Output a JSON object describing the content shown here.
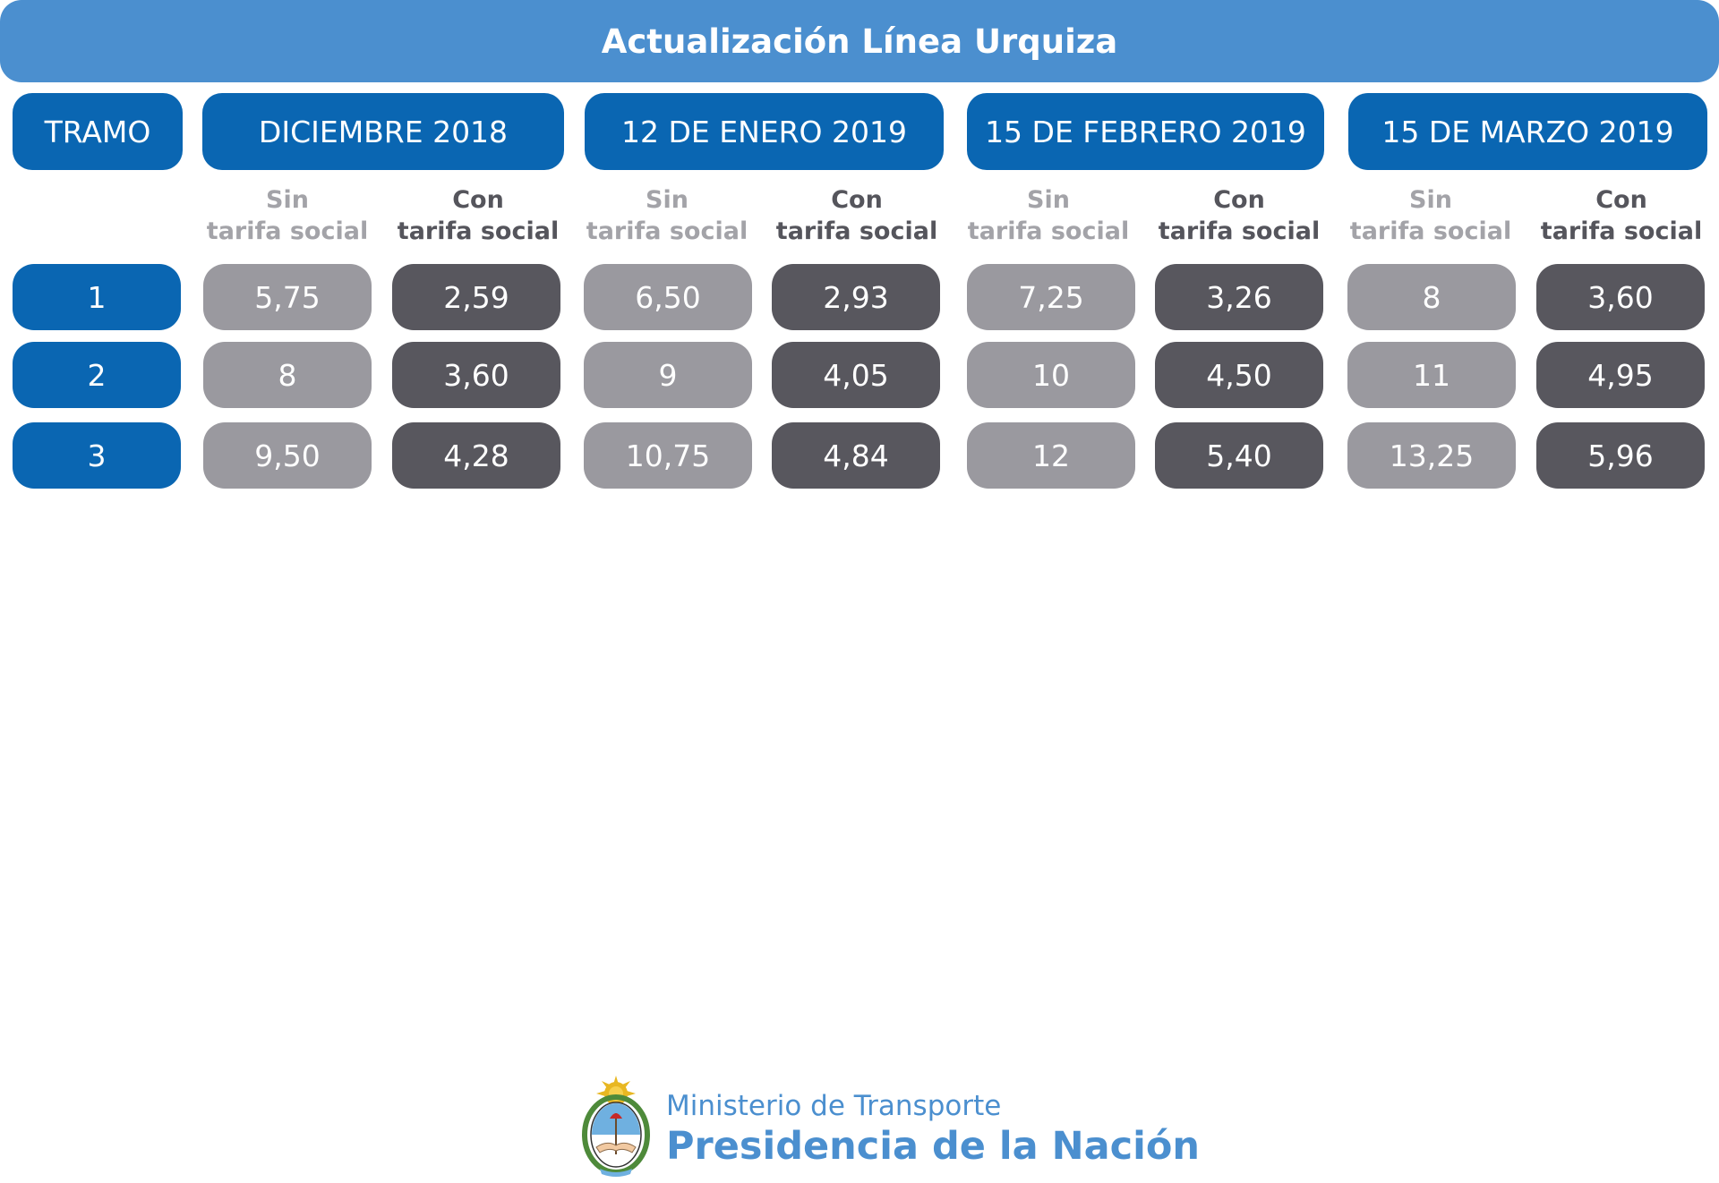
{
  "title": "Actualización Línea Urquiza",
  "headers": {
    "tramo": "TRAMO",
    "periods": [
      "DICIEMBRE 2018",
      "12 DE ENERO 2019",
      "15 DE FEBRERO 2019",
      "15 DE MARZO 2019"
    ]
  },
  "sublabels": {
    "sin_line1": "Sin",
    "con_line1": "Con",
    "line2": "tarifa social"
  },
  "rows": [
    {
      "tramo": "1",
      "values": [
        "5,75",
        "2,59",
        "6,50",
        "2,93",
        "7,25",
        "3,26",
        "8",
        "3,60"
      ]
    },
    {
      "tramo": "2",
      "values": [
        "8",
        "3,60",
        "9",
        "4,05",
        "10",
        "4,50",
        "11",
        "4,95"
      ]
    },
    {
      "tramo": "3",
      "values": [
        "9,50",
        "4,28",
        "10,75",
        "4,84",
        "12",
        "5,40",
        "13,25",
        "5,96"
      ]
    }
  ],
  "footer": {
    "ministerio": "Ministerio de Transporte",
    "presidencia": "Presidencia de la Nación",
    "logo_icon": "escudo-nacional-icon"
  },
  "colors": {
    "title_bar": "#4b8fcf",
    "header_blue": "#0a66b2",
    "sin_gray": "#9a999f",
    "con_dark": "#58575e"
  }
}
